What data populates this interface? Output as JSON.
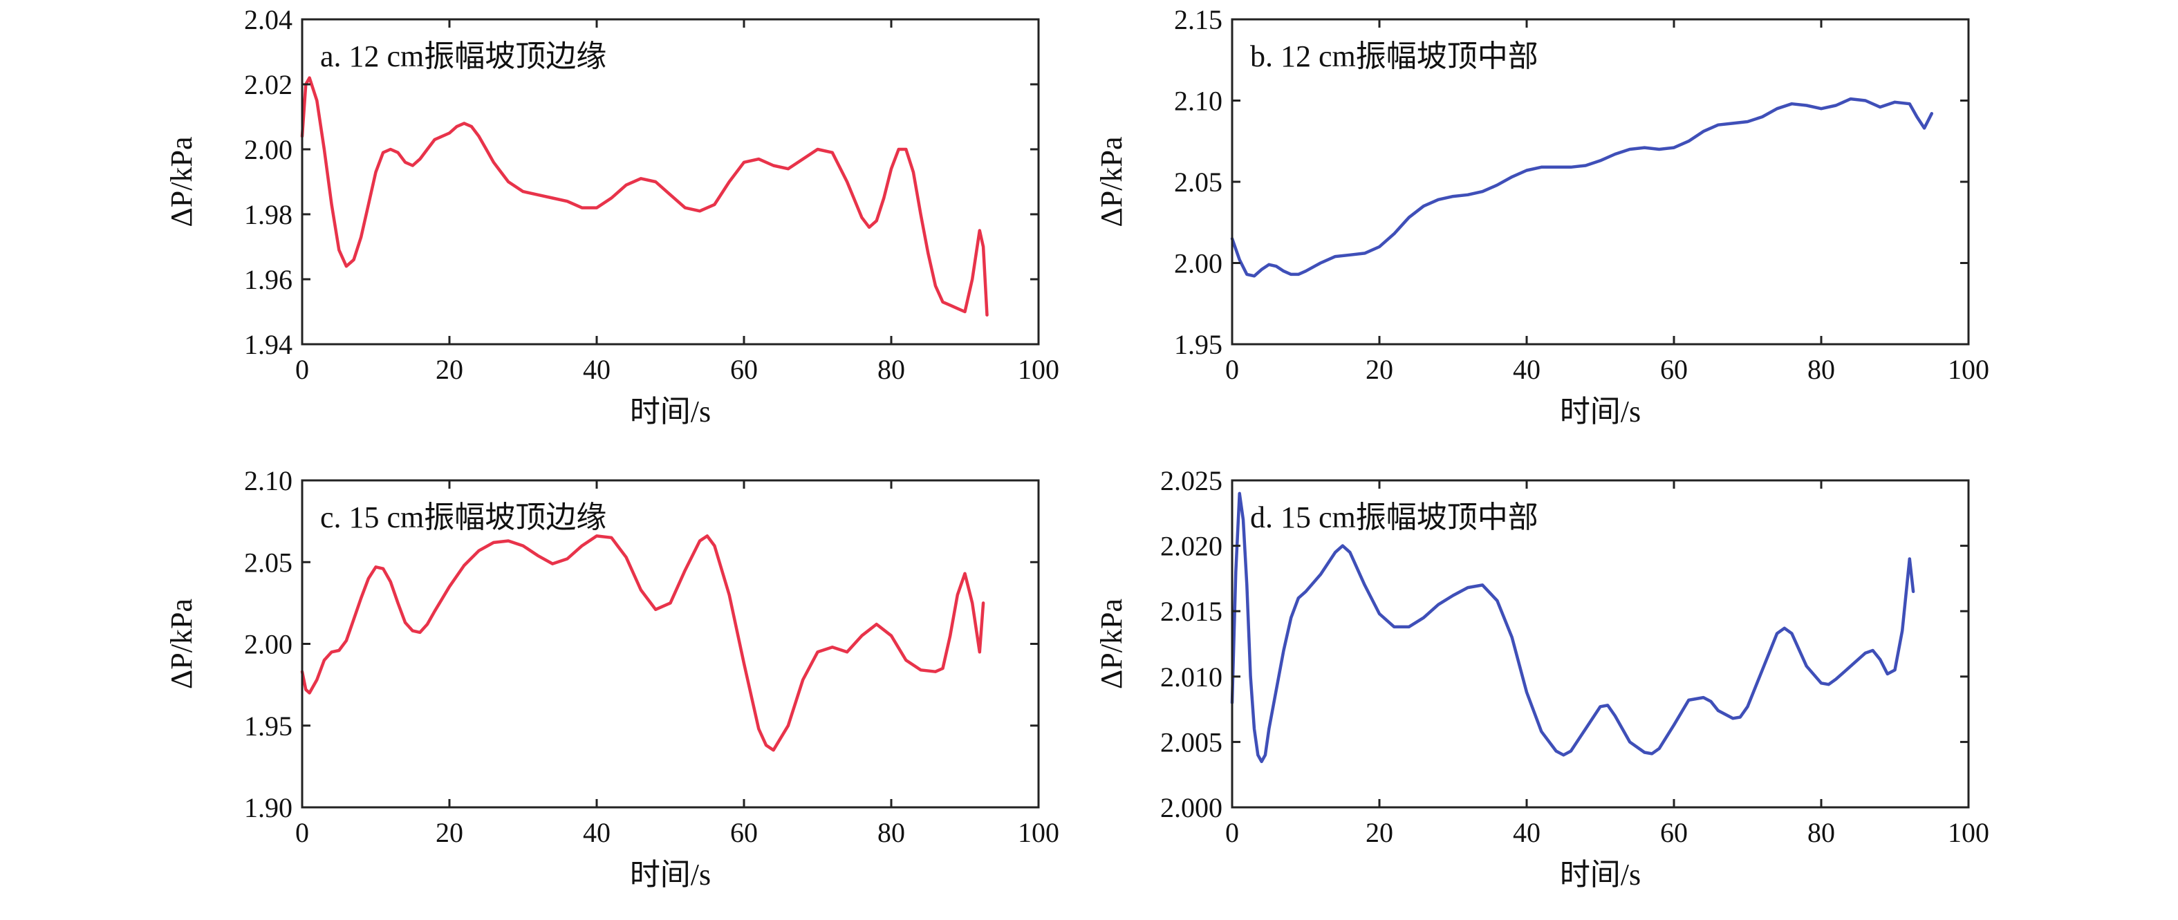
{
  "figure": {
    "panels": [
      {
        "id": "a",
        "color": "#e8334a",
        "chart_data": {
          "type": "line",
          "title": "a. 12 cm振幅坡顶边缘",
          "xlabel": "时间/s",
          "ylabel": "ΔP/kPa",
          "xlim": [
            0,
            100
          ],
          "ylim": [
            1.94,
            2.04
          ],
          "xticks": [
            0,
            20,
            40,
            60,
            80,
            100
          ],
          "yticks": [
            1.94,
            1.96,
            1.98,
            2.0,
            2.02,
            2.04
          ],
          "ytick_labels": [
            "1.94",
            "1.96",
            "1.98",
            "2.00",
            "2.02",
            "2.04"
          ],
          "grid": false,
          "series": [
            {
              "x": [
                0,
                0.5,
                1,
                2,
                3,
                4,
                5,
                6,
                7,
                8,
                9,
                10,
                11,
                12,
                13,
                14,
                15,
                16,
                17,
                18,
                19,
                20,
                21,
                22,
                23,
                24,
                25,
                26,
                27,
                28,
                30,
                32,
                34,
                36,
                38,
                40,
                42,
                44,
                46,
                48,
                50,
                52,
                54,
                56,
                58,
                60,
                62,
                64,
                66,
                68,
                70,
                72,
                74,
                76,
                77,
                78,
                79,
                80,
                81,
                82,
                83,
                84,
                85,
                86,
                87,
                88,
                89,
                90,
                91,
                92,
                92.5,
                93
              ],
              "y": [
                2.004,
                2.02,
                2.022,
                2.015,
                2.0,
                1.983,
                1.969,
                1.964,
                1.966,
                1.973,
                1.983,
                1.993,
                1.999,
                2.0,
                1.999,
                1.996,
                1.995,
                1.997,
                2.0,
                2.003,
                2.004,
                2.005,
                2.007,
                2.008,
                2.007,
                2.004,
                2.0,
                1.996,
                1.993,
                1.99,
                1.987,
                1.986,
                1.985,
                1.984,
                1.982,
                1.982,
                1.985,
                1.989,
                1.991,
                1.99,
                1.986,
                1.982,
                1.981,
                1.983,
                1.99,
                1.996,
                1.997,
                1.995,
                1.994,
                1.997,
                2.0,
                1.999,
                1.99,
                1.979,
                1.976,
                1.978,
                1.985,
                1.994,
                2.0,
                2.0,
                1.993,
                1.98,
                1.968,
                1.958,
                1.953,
                1.952,
                1.951,
                1.95,
                1.96,
                1.975,
                1.97,
                1.949
              ]
            }
          ]
        }
      },
      {
        "id": "b",
        "color": "#3f4fb8",
        "chart_data": {
          "type": "line",
          "title": "b. 12 cm振幅坡顶中部",
          "xlabel": "时间/s",
          "ylabel": "ΔP/kPa",
          "xlim": [
            0,
            100
          ],
          "ylim": [
            1.95,
            2.15
          ],
          "xticks": [
            0,
            20,
            40,
            60,
            80,
            100
          ],
          "yticks": [
            1.95,
            2.0,
            2.05,
            2.1,
            2.15
          ],
          "ytick_labels": [
            "1.95",
            "2.00",
            "2.05",
            "2.10",
            "2.15"
          ],
          "grid": false,
          "series": [
            {
              "x": [
                0,
                1,
                2,
                3,
                4,
                5,
                6,
                7,
                8,
                9,
                10,
                12,
                14,
                16,
                18,
                20,
                22,
                24,
                26,
                28,
                30,
                32,
                34,
                36,
                38,
                40,
                42,
                44,
                46,
                48,
                50,
                52,
                54,
                56,
                58,
                60,
                62,
                64,
                66,
                68,
                70,
                72,
                74,
                76,
                78,
                80,
                82,
                84,
                86,
                88,
                90,
                92,
                93,
                94,
                95
              ],
              "y": [
                2.015,
                2.002,
                1.993,
                1.992,
                1.996,
                1.999,
                1.998,
                1.995,
                1.993,
                1.993,
                1.995,
                2.0,
                2.004,
                2.005,
                2.006,
                2.01,
                2.018,
                2.028,
                2.035,
                2.039,
                2.041,
                2.042,
                2.044,
                2.048,
                2.053,
                2.057,
                2.059,
                2.059,
                2.059,
                2.06,
                2.063,
                2.067,
                2.07,
                2.071,
                2.07,
                2.071,
                2.075,
                2.081,
                2.085,
                2.086,
                2.087,
                2.09,
                2.095,
                2.098,
                2.097,
                2.095,
                2.097,
                2.101,
                2.1,
                2.096,
                2.099,
                2.098,
                2.09,
                2.083,
                2.092
              ]
            }
          ]
        }
      },
      {
        "id": "c",
        "color": "#e8334a",
        "chart_data": {
          "type": "line",
          "title": "c. 15 cm振幅坡顶边缘",
          "xlabel": "时间/s",
          "ylabel": "ΔP/kPa",
          "xlim": [
            0,
            100
          ],
          "ylim": [
            1.9,
            2.1
          ],
          "xticks": [
            0,
            20,
            40,
            60,
            80,
            100
          ],
          "yticks": [
            1.9,
            1.95,
            2.0,
            2.05,
            2.1
          ],
          "ytick_labels": [
            "1.90",
            "1.95",
            "2.00",
            "2.05",
            "2.10"
          ],
          "grid": false,
          "series": [
            {
              "x": [
                0,
                0.5,
                1,
                2,
                3,
                4,
                5,
                6,
                7,
                8,
                9,
                10,
                11,
                12,
                13,
                14,
                15,
                16,
                17,
                18,
                20,
                22,
                24,
                26,
                28,
                30,
                32,
                34,
                36,
                38,
                40,
                42,
                44,
                46,
                48,
                50,
                52,
                54,
                55,
                56,
                58,
                60,
                62,
                63,
                64,
                66,
                68,
                70,
                72,
                74,
                76,
                78,
                80,
                82,
                84,
                86,
                87,
                88,
                89,
                90,
                91,
                92,
                92.5
              ],
              "y": [
                1.983,
                1.972,
                1.97,
                1.978,
                1.99,
                1.995,
                1.996,
                2.002,
                2.015,
                2.028,
                2.04,
                2.047,
                2.046,
                2.038,
                2.025,
                2.013,
                2.008,
                2.007,
                2.012,
                2.02,
                2.035,
                2.048,
                2.057,
                2.062,
                2.063,
                2.06,
                2.054,
                2.049,
                2.052,
                2.06,
                2.066,
                2.065,
                2.053,
                2.033,
                2.021,
                2.025,
                2.045,
                2.063,
                2.066,
                2.06,
                2.03,
                1.988,
                1.948,
                1.938,
                1.935,
                1.95,
                1.978,
                1.995,
                1.998,
                1.995,
                2.005,
                2.012,
                2.005,
                1.99,
                1.984,
                1.983,
                1.985,
                2.005,
                2.03,
                2.043,
                2.025,
                1.995,
                2.025
              ]
            }
          ]
        }
      },
      {
        "id": "d",
        "color": "#3f4fb8",
        "chart_data": {
          "type": "line",
          "title": "d. 15 cm振幅坡顶中部",
          "xlabel": "时间/s",
          "ylabel": "ΔP/kPa",
          "xlim": [
            0,
            100
          ],
          "ylim": [
            2.0,
            2.025
          ],
          "xticks": [
            0,
            20,
            40,
            60,
            80,
            100
          ],
          "yticks": [
            2.0,
            2.005,
            2.01,
            2.015,
            2.02,
            2.025
          ],
          "ytick_labels": [
            "2.000",
            "2.005",
            "2.010",
            "2.015",
            "2.020",
            "2.025"
          ],
          "grid": false,
          "series": [
            {
              "x": [
                0,
                0.5,
                1,
                1.5,
                2,
                2.5,
                3,
                3.5,
                4,
                4.5,
                5,
                6,
                7,
                8,
                9,
                10,
                12,
                14,
                15,
                16,
                18,
                20,
                22,
                24,
                26,
                28,
                30,
                32,
                34,
                36,
                38,
                40,
                42,
                44,
                45,
                46,
                48,
                50,
                51,
                52,
                54,
                56,
                57,
                58,
                60,
                62,
                64,
                65,
                66,
                68,
                69,
                70,
                72,
                74,
                75,
                76,
                78,
                80,
                81,
                82,
                84,
                86,
                87,
                88,
                89,
                90,
                91,
                92,
                92.5
              ],
              "y": [
                2.008,
                2.018,
                2.024,
                2.022,
                2.017,
                2.01,
                2.006,
                2.004,
                2.0035,
                2.004,
                2.006,
                2.009,
                2.012,
                2.0145,
                2.016,
                2.0165,
                2.0178,
                2.0195,
                2.02,
                2.0195,
                2.017,
                2.0148,
                2.0138,
                2.0138,
                2.0145,
                2.0155,
                2.0162,
                2.0168,
                2.017,
                2.0158,
                2.013,
                2.0088,
                2.0058,
                2.0043,
                2.004,
                2.0043,
                2.006,
                2.0077,
                2.0078,
                2.007,
                2.005,
                2.0042,
                2.0041,
                2.0045,
                2.0063,
                2.0082,
                2.0084,
                2.0081,
                2.0074,
                2.0068,
                2.0069,
                2.0077,
                2.0105,
                2.0133,
                2.0137,
                2.0133,
                2.0108,
                2.0095,
                2.0094,
                2.0098,
                2.0108,
                2.0118,
                2.012,
                2.0113,
                2.0102,
                2.0105,
                2.0135,
                2.019,
                2.0165
              ]
            }
          ]
        }
      }
    ]
  }
}
